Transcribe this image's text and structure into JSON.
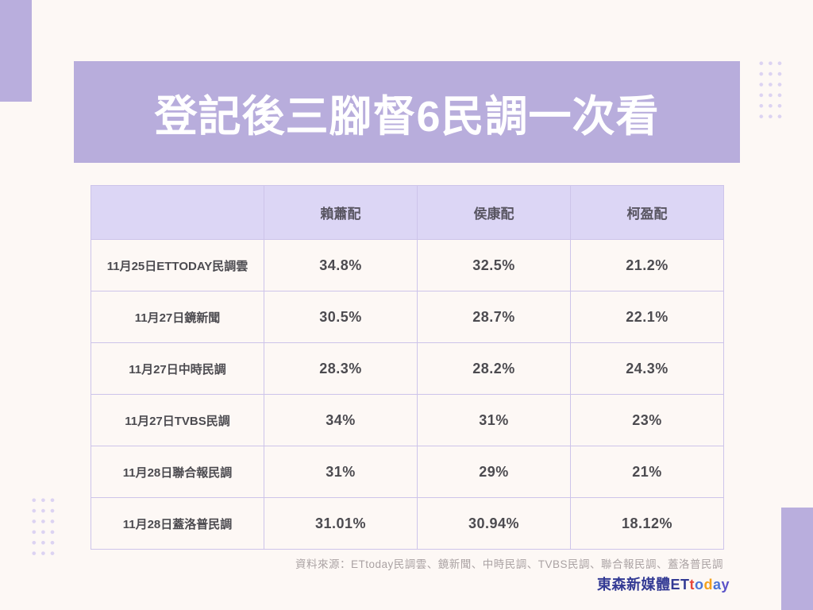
{
  "page": {
    "title": "登記後三腳督6民調一次看"
  },
  "table": {
    "columns": [
      "賴蕭配",
      "侯康配",
      "柯盈配"
    ],
    "rows": [
      {
        "label": "11月25日ETTODAY民調雲",
        "values": [
          "34.8%",
          "32.5%",
          "21.2%"
        ]
      },
      {
        "label": "11月27日鏡新聞",
        "values": [
          "30.5%",
          "28.7%",
          "22.1%"
        ]
      },
      {
        "label": "11月27日中時民調",
        "values": [
          "28.3%",
          "28.2%",
          "24.3%"
        ]
      },
      {
        "label": "11月27日TVBS民調",
        "values": [
          "34%",
          "31%",
          "23%"
        ]
      },
      {
        "label": "11月28日聯合報民調",
        "values": [
          "31%",
          "29%",
          "21%"
        ]
      },
      {
        "label": "11月28日蓋洛普民調",
        "values": [
          "31.01%",
          "30.94%",
          "18.12%"
        ]
      }
    ]
  },
  "footer": {
    "source": "資料來源：ETtoday民調雲、鏡新聞、中時民調、TVBS民調、聯合報民調、蓋洛普民調",
    "logo_segments": [
      {
        "text": "東森新媒體ET",
        "color": "#333a94"
      },
      {
        "text": "t",
        "color": "#e8473a"
      },
      {
        "text": "o",
        "color": "#4b74d6"
      },
      {
        "text": "d",
        "color": "#f4a21d"
      },
      {
        "text": "a",
        "color": "#4b74d6"
      },
      {
        "text": "y",
        "color": "#5a52c8"
      }
    ]
  },
  "colors": {
    "background": "#fdf8f5",
    "banner_purple": "#b8addc",
    "header_row": "#dcd6f5",
    "table_border": "#cdc4ea",
    "cell_text": "#4c4b50",
    "title_text": "#ffffff",
    "source_text": "#aaa2a3"
  },
  "chart_data": {
    "type": "table",
    "title": "登記後三腳督6民調一次看",
    "columns": [
      "",
      "賴蕭配",
      "侯康配",
      "柯盈配"
    ],
    "categories": [
      "11月25日ETTODAY民調雲",
      "11月27日鏡新聞",
      "11月27日中時民調",
      "11月27日TVBS民調",
      "11月28日聯合報民調",
      "11月28日蓋洛普民調"
    ],
    "series": [
      {
        "name": "賴蕭配",
        "values": [
          34.8,
          30.5,
          28.3,
          34,
          31,
          31.01
        ]
      },
      {
        "name": "侯康配",
        "values": [
          32.5,
          28.7,
          28.2,
          31,
          29,
          30.94
        ]
      },
      {
        "name": "柯盈配",
        "values": [
          21.2,
          22.1,
          24.3,
          23,
          21,
          18.12
        ]
      }
    ],
    "unit": "%",
    "source": "資料來源：ETtoday民調雲、鏡新聞、中時民調、TVBS民調、聯合報民調、蓋洛普民調"
  }
}
